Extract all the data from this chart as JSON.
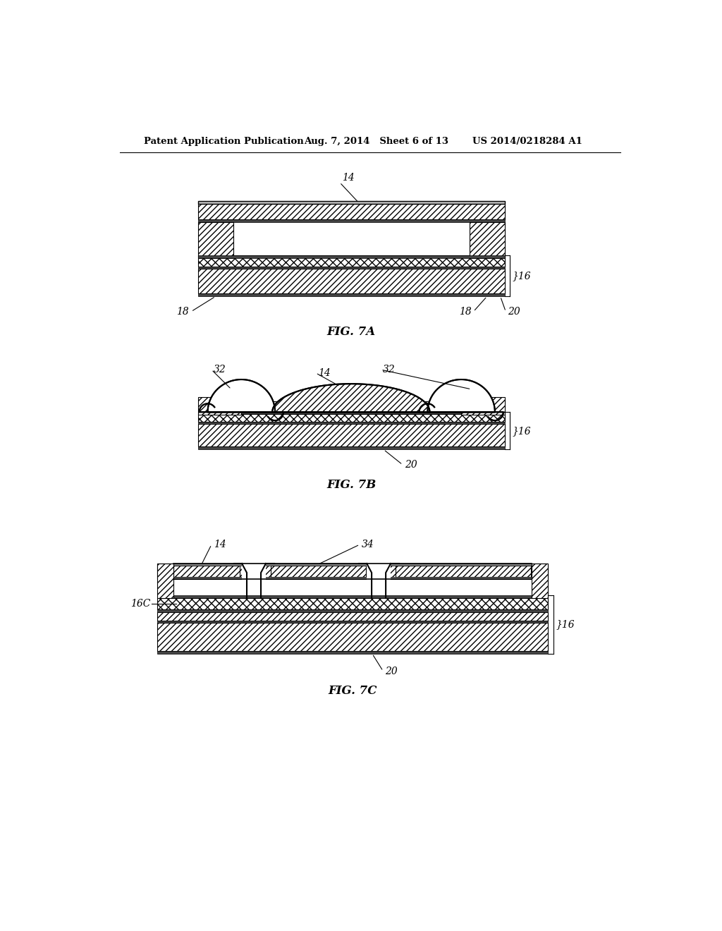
{
  "bg_color": "#ffffff",
  "lc": "#000000",
  "header_left": "Patent Application Publication",
  "header_mid": "Aug. 7, 2014   Sheet 6 of 13",
  "header_right": "US 2014/0218284 A1",
  "fig7a_label": "FIG. 7A",
  "fig7b_label": "FIG. 7B",
  "fig7c_label": "FIG. 7C"
}
